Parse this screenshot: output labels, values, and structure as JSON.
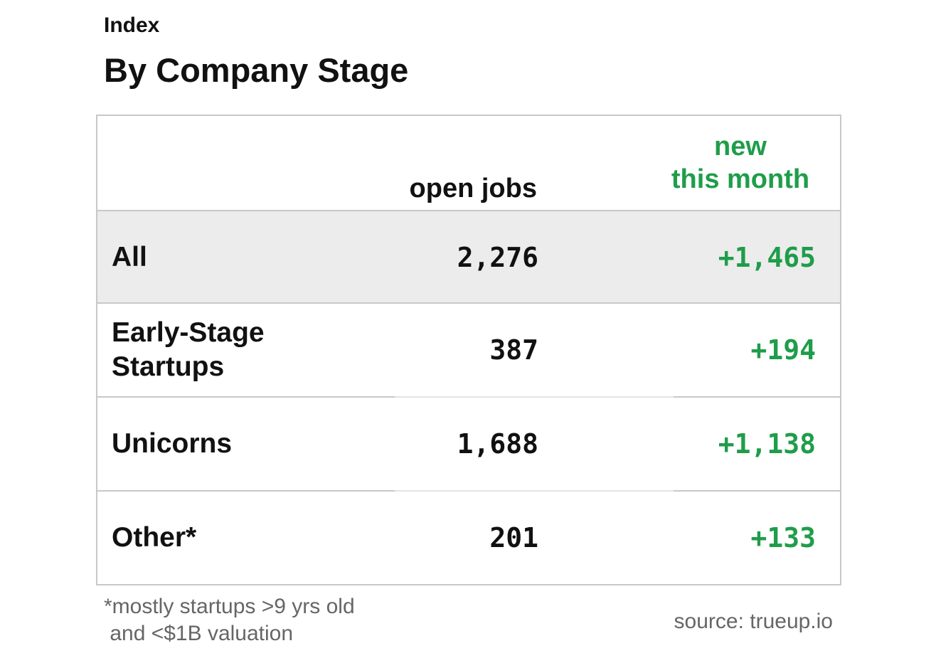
{
  "header": {
    "kicker": "Index",
    "title": "By Company Stage"
  },
  "table": {
    "columns": {
      "open_jobs": "open jobs",
      "new_this_month_line1": "new",
      "new_this_month_line2": "this month"
    },
    "rows": [
      {
        "label": "All",
        "open_jobs": "2,276",
        "new_this_month": "+1,465",
        "highlighted": true
      },
      {
        "label": "Early-Stage Startups",
        "open_jobs": "387",
        "new_this_month": "+194",
        "highlighted": false
      },
      {
        "label": "Unicorns",
        "open_jobs": "1,688",
        "new_this_month": "+1,138",
        "highlighted": false
      },
      {
        "label": "Other*",
        "open_jobs": "201",
        "new_this_month": "+133",
        "highlighted": false
      }
    ]
  },
  "footer": {
    "footnote_line1": "*mostly startups >9 yrs old",
    "footnote_line2": " and <$1B valuation",
    "source": "source: trueup.io"
  },
  "colors": {
    "positive": "#1f9d4a",
    "text": "#111111",
    "muted": "#666666",
    "border": "#c8c8c8",
    "highlight_row": "#ececec"
  }
}
